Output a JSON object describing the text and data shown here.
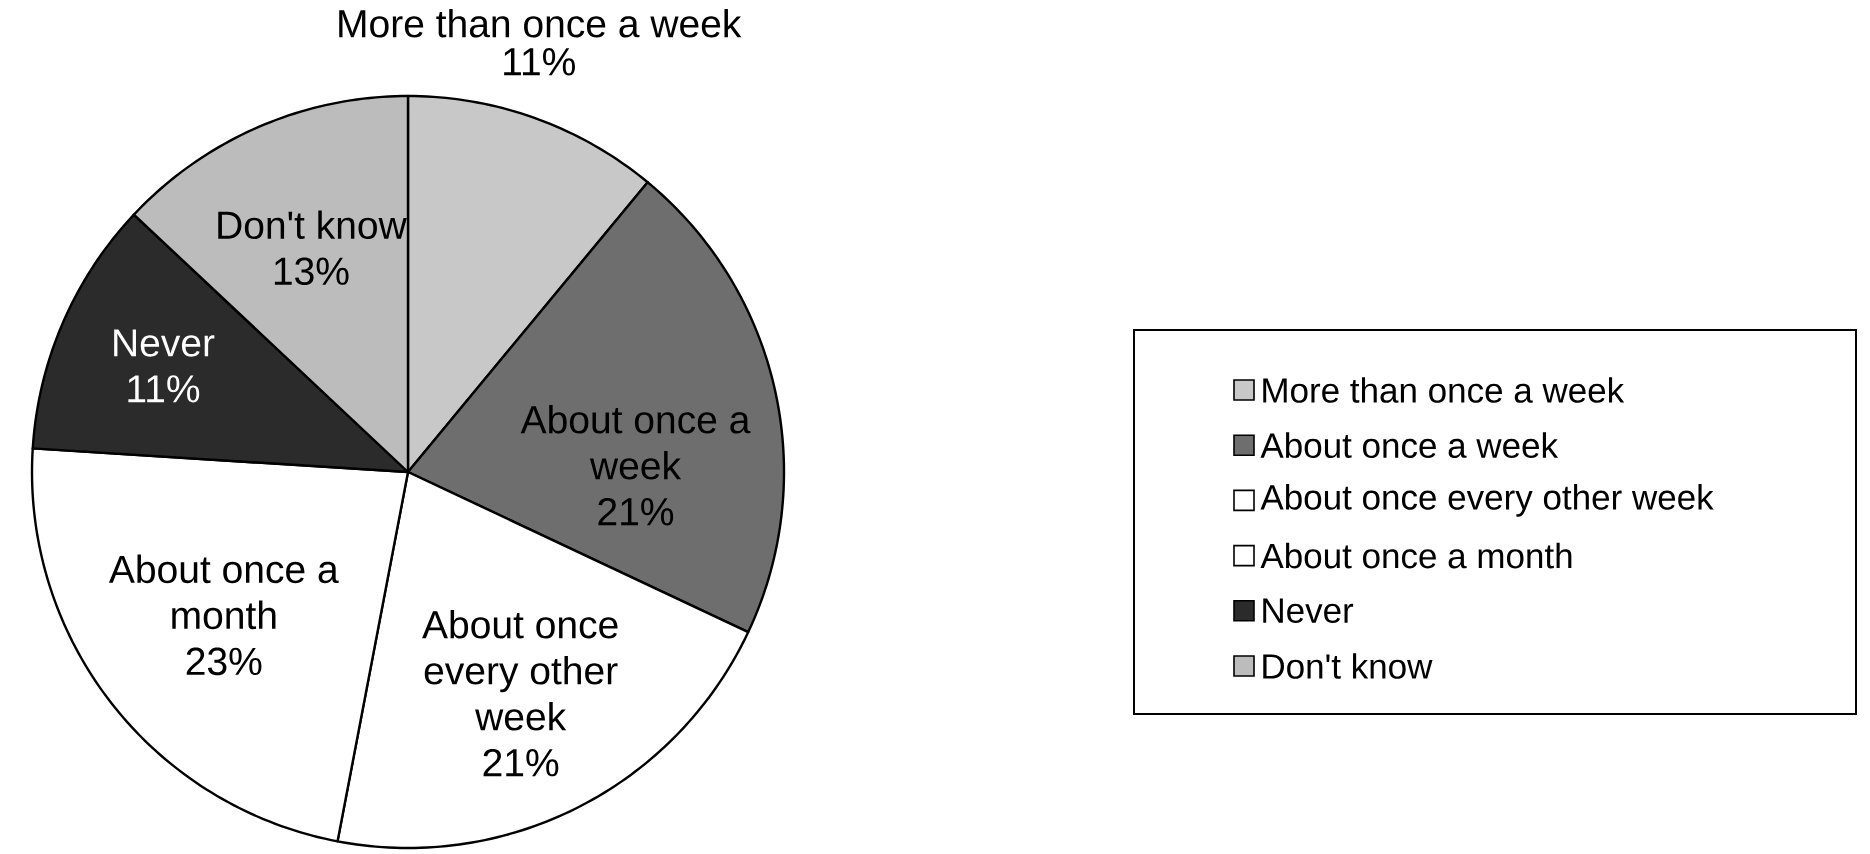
{
  "chart_data": {
    "type": "pie",
    "categories": [
      "More than once a week",
      "About once a week",
      "About once every other week",
      "About once a month",
      "Never",
      "Don't know"
    ],
    "values": [
      11,
      21,
      21,
      23,
      11,
      13
    ],
    "value_labels": [
      "11%",
      "21%",
      "21%",
      "23%",
      "11%",
      "13%"
    ],
    "colors": [
      "#c8c8c8",
      "#6e6e6e",
      "#ffffff",
      "#ffffff",
      "#2b2b2b",
      "#bcbcbc"
    ],
    "legend": "right"
  }
}
